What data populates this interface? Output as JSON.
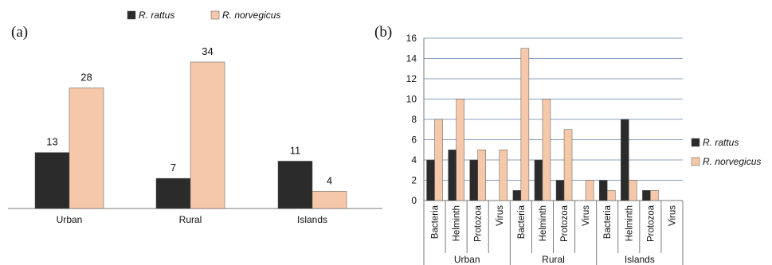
{
  "colors": {
    "r_rattus": "#2b2b2b",
    "r_norvegicus": "#f5c8aa",
    "grid": "#8aa0bd",
    "axis": "#7a7a7a"
  },
  "panel_a": {
    "letter": "(a)"
  },
  "panel_b": {
    "letter": "(b)"
  },
  "chart_data": [
    {
      "type": "bar",
      "title": "",
      "xlabel": "",
      "ylabel": "",
      "categories": [
        "Urban",
        "Rural",
        "Islands"
      ],
      "series": [
        {
          "name": "R. rattus",
          "values": [
            13,
            7,
            11
          ]
        },
        {
          "name": "R. norvegicus",
          "values": [
            28,
            34,
            4
          ]
        }
      ],
      "ylim": [
        0,
        34
      ],
      "data_labels": true,
      "grid": false,
      "legend_position": "top-center"
    },
    {
      "type": "bar",
      "title": "",
      "xlabel": "",
      "ylabel": "",
      "groups": [
        "Urban",
        "Rural",
        "Islands"
      ],
      "categories": [
        "Bacteria",
        "Helminth",
        "Protozoa",
        "Virus"
      ],
      "series": [
        {
          "name": "R. rattus",
          "values": [
            [
              4,
              5,
              4,
              0
            ],
            [
              1,
              4,
              2,
              0
            ],
            [
              2,
              8,
              1,
              0
            ]
          ]
        },
        {
          "name": "R. norvegicus",
          "values": [
            [
              8,
              10,
              5,
              5
            ],
            [
              15,
              10,
              7,
              2
            ],
            [
              1,
              2,
              1,
              0
            ]
          ]
        }
      ],
      "ylim": [
        0,
        16
      ],
      "yticks": [
        "0",
        "2",
        "4",
        "6",
        "8",
        "10",
        "12",
        "14",
        "16"
      ],
      "grid": true,
      "legend_position": "right"
    }
  ]
}
